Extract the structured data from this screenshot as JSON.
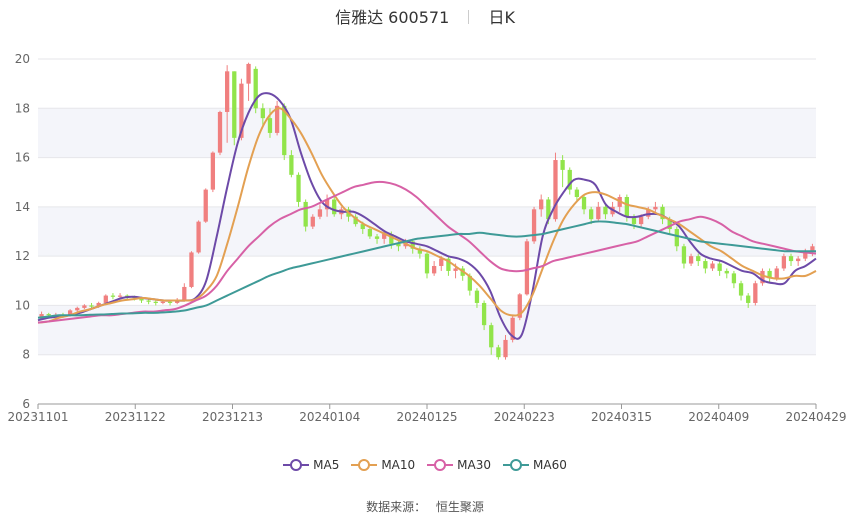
{
  "header": {
    "name": "信雅达",
    "code": "600571",
    "period": "日K"
  },
  "source": {
    "label": "数据来源：",
    "provider": "恒生聚源"
  },
  "colors": {
    "up": "#f07f7f",
    "down": "#91e44a",
    "MA5": "#6d4aa8",
    "MA10": "#e3a052",
    "MA30": "#d761a6",
    "MA60": "#3e9a97"
  },
  "chart_data": {
    "type": "candlestick",
    "yticks": [
      "6",
      "8",
      "10",
      "12",
      "14",
      "16",
      "18",
      "20"
    ],
    "ylim": [
      6,
      20
    ],
    "xticks": [
      "20231101",
      "20231122",
      "20231213",
      "20240104",
      "20240125",
      "20240223",
      "20240315",
      "20240409",
      "20240429"
    ],
    "legend": [
      "MA5",
      "MA10",
      "MA30",
      "MA60"
    ],
    "candles": [
      [
        9.55,
        9.65,
        9.75,
        9.45
      ],
      [
        9.65,
        9.6,
        9.7,
        9.5
      ],
      [
        9.6,
        9.62,
        9.7,
        9.55
      ],
      [
        9.62,
        9.6,
        9.7,
        9.5
      ],
      [
        9.6,
        9.8,
        9.85,
        9.55
      ],
      [
        9.8,
        9.9,
        9.95,
        9.7
      ],
      [
        9.9,
        10.0,
        10.05,
        9.85
      ],
      [
        10.0,
        9.95,
        10.1,
        9.9
      ],
      [
        9.95,
        10.1,
        10.15,
        9.9
      ],
      [
        10.1,
        10.4,
        10.45,
        10.05
      ],
      [
        10.4,
        10.35,
        10.5,
        10.25
      ],
      [
        10.35,
        10.4,
        10.5,
        10.3
      ],
      [
        10.4,
        10.35,
        10.45,
        10.2
      ],
      [
        10.35,
        10.3,
        10.4,
        10.2
      ],
      [
        10.3,
        10.2,
        10.35,
        10.1
      ],
      [
        10.2,
        10.15,
        10.3,
        10.05
      ],
      [
        10.15,
        10.1,
        10.25,
        10.0
      ],
      [
        10.1,
        10.15,
        10.2,
        10.05
      ],
      [
        10.15,
        10.1,
        10.2,
        10.0
      ],
      [
        10.1,
        10.2,
        10.3,
        10.05
      ],
      [
        10.2,
        10.75,
        10.9,
        10.15
      ],
      [
        10.75,
        12.15,
        12.2,
        10.7
      ],
      [
        12.15,
        13.4,
        13.45,
        12.1
      ],
      [
        13.4,
        14.7,
        14.75,
        13.35
      ],
      [
        14.7,
        16.2,
        16.25,
        14.6
      ],
      [
        16.2,
        17.85,
        17.9,
        16.1
      ],
      [
        17.85,
        19.5,
        19.75,
        16.6
      ],
      [
        19.5,
        16.8,
        19.5,
        16.5
      ],
      [
        16.8,
        19.0,
        19.2,
        16.7
      ],
      [
        19.0,
        19.8,
        19.85,
        18.3
      ],
      [
        19.6,
        18.0,
        19.7,
        17.8
      ],
      [
        18.0,
        17.6,
        18.2,
        17.3
      ],
      [
        17.6,
        17.0,
        18.0,
        16.8
      ],
      [
        17.0,
        18.1,
        18.3,
        16.9
      ],
      [
        18.1,
        16.1,
        18.2,
        15.9
      ],
      [
        16.1,
        15.3,
        16.3,
        15.2
      ],
      [
        15.3,
        14.2,
        15.4,
        14.0
      ],
      [
        14.2,
        13.2,
        14.3,
        13.0
      ],
      [
        13.2,
        13.6,
        13.7,
        13.1
      ],
      [
        13.6,
        13.9,
        14.1,
        13.5
      ],
      [
        13.9,
        14.3,
        14.5,
        13.6
      ],
      [
        14.3,
        13.7,
        14.4,
        13.6
      ],
      [
        13.7,
        13.9,
        14.0,
        13.5
      ],
      [
        13.9,
        13.6,
        14.0,
        13.4
      ],
      [
        13.6,
        13.3,
        13.7,
        13.2
      ],
      [
        13.3,
        13.1,
        13.4,
        12.9
      ],
      [
        13.1,
        12.8,
        13.2,
        12.7
      ],
      [
        12.8,
        12.7,
        12.9,
        12.5
      ],
      [
        12.7,
        12.9,
        13.0,
        12.5
      ],
      [
        12.9,
        12.5,
        13.0,
        12.3
      ],
      [
        12.5,
        12.4,
        12.6,
        12.2
      ],
      [
        12.4,
        12.6,
        12.7,
        12.3
      ],
      [
        12.6,
        12.3,
        12.7,
        12.1
      ],
      [
        12.3,
        12.1,
        12.4,
        11.9
      ],
      [
        12.1,
        11.3,
        12.2,
        11.1
      ],
      [
        11.3,
        11.6,
        11.8,
        11.2
      ],
      [
        11.6,
        11.9,
        12.0,
        11.4
      ],
      [
        11.9,
        11.4,
        12.0,
        11.2
      ],
      [
        11.4,
        11.5,
        11.7,
        11.1
      ],
      [
        11.5,
        11.2,
        11.6,
        11.0
      ],
      [
        11.2,
        10.6,
        11.3,
        10.4
      ],
      [
        10.6,
        10.1,
        10.7,
        9.9
      ],
      [
        10.1,
        9.2,
        10.2,
        9.0
      ],
      [
        9.2,
        8.3,
        9.3,
        8.0
      ],
      [
        8.3,
        7.9,
        8.4,
        7.8
      ],
      [
        7.9,
        8.6,
        8.8,
        7.8
      ],
      [
        8.6,
        9.5,
        9.6,
        8.5
      ],
      [
        9.5,
        10.45,
        10.5,
        9.4
      ],
      [
        10.45,
        12.6,
        12.7,
        10.4
      ],
      [
        12.6,
        13.9,
        14.0,
        12.5
      ],
      [
        13.9,
        14.3,
        14.5,
        13.6
      ],
      [
        14.3,
        13.5,
        14.4,
        13.3
      ],
      [
        13.5,
        15.9,
        16.2,
        13.4
      ],
      [
        15.9,
        15.5,
        16.1,
        14.8
      ],
      [
        15.5,
        14.7,
        15.6,
        14.5
      ],
      [
        14.7,
        14.4,
        14.8,
        14.2
      ],
      [
        14.4,
        13.9,
        14.5,
        13.7
      ],
      [
        13.9,
        13.5,
        14.0,
        13.3
      ],
      [
        13.5,
        14.0,
        14.2,
        13.4
      ],
      [
        14.0,
        13.7,
        14.1,
        13.5
      ],
      [
        13.7,
        14.0,
        14.2,
        13.6
      ],
      [
        14.0,
        14.4,
        14.5,
        13.8
      ],
      [
        14.4,
        13.6,
        14.5,
        13.4
      ],
      [
        13.6,
        13.3,
        13.7,
        13.1
      ],
      [
        13.3,
        13.6,
        13.7,
        13.2
      ],
      [
        13.6,
        13.9,
        14.0,
        13.5
      ],
      [
        13.9,
        14.0,
        14.2,
        13.8
      ],
      [
        14.0,
        13.5,
        14.1,
        13.3
      ],
      [
        13.5,
        13.1,
        13.6,
        12.9
      ],
      [
        13.1,
        12.4,
        13.2,
        12.2
      ],
      [
        12.4,
        11.7,
        12.5,
        11.5
      ],
      [
        11.7,
        12.0,
        12.1,
        11.6
      ],
      [
        12.0,
        11.8,
        12.1,
        11.6
      ],
      [
        11.8,
        11.5,
        11.9,
        11.3
      ],
      [
        11.5,
        11.7,
        11.8,
        11.4
      ],
      [
        11.7,
        11.4,
        11.8,
        11.2
      ],
      [
        11.4,
        11.3,
        11.5,
        11.1
      ],
      [
        11.3,
        10.9,
        11.4,
        10.7
      ],
      [
        10.9,
        10.4,
        11.0,
        10.2
      ],
      [
        10.4,
        10.1,
        10.5,
        9.9
      ],
      [
        10.1,
        10.9,
        11.0,
        10.0
      ],
      [
        10.9,
        11.4,
        11.5,
        10.8
      ],
      [
        11.4,
        11.1,
        11.5,
        10.9
      ],
      [
        11.1,
        11.5,
        11.6,
        11.0
      ],
      [
        11.5,
        12.0,
        12.1,
        11.4
      ],
      [
        12.0,
        11.8,
        12.1,
        11.6
      ],
      [
        11.8,
        11.9,
        12.0,
        11.6
      ],
      [
        11.9,
        12.2,
        12.3,
        11.8
      ],
      [
        12.2,
        12.4,
        12.5,
        12.0
      ]
    ],
    "series": [
      {
        "name": "MA5",
        "values": [
          9.4,
          9.5,
          9.55,
          9.6,
          9.7,
          9.85,
          10.0,
          10.15,
          10.3,
          10.35,
          10.3,
          10.25,
          10.2,
          10.2,
          10.2,
          10.3,
          11.0,
          12.8,
          14.8,
          16.6,
          17.8,
          18.5,
          18.6,
          18.3,
          17.6,
          16.2,
          15.0,
          14.2,
          13.9,
          13.8,
          13.8,
          13.6,
          13.3,
          13.0,
          12.8,
          12.6,
          12.5,
          12.4,
          12.2,
          12.0,
          11.9,
          11.7,
          11.3,
          10.6,
          9.5,
          8.8,
          8.8,
          10.5,
          12.8,
          13.9,
          14.6,
          15.1,
          15.1,
          14.9,
          14.1,
          13.8,
          13.6,
          13.6,
          13.7,
          13.7,
          13.5,
          13.2,
          12.6,
          12.1,
          11.9,
          11.8,
          11.6,
          11.4,
          11.3,
          11.0,
          10.9,
          10.9,
          11.4,
          11.6,
          11.9
        ]
      },
      {
        "name": "MA10",
        "values": [
          9.3,
          9.35,
          9.5,
          9.6,
          9.75,
          9.85,
          10.0,
          10.1,
          10.2,
          10.25,
          10.3,
          10.25,
          10.2,
          10.2,
          10.2,
          10.25,
          10.6,
          11.2,
          12.5,
          14.0,
          15.6,
          16.9,
          17.7,
          18.0,
          17.6,
          17.0,
          16.2,
          15.3,
          14.6,
          14.0,
          13.6,
          13.3,
          13.1,
          12.9,
          12.7,
          12.5,
          12.3,
          12.2,
          12.0,
          11.8,
          11.5,
          11.2,
          10.8,
          10.3,
          9.8,
          9.6,
          9.7,
          10.4,
          11.5,
          12.6,
          13.5,
          14.1,
          14.5,
          14.6,
          14.5,
          14.3,
          14.1,
          14.0,
          13.9,
          13.7,
          13.5,
          13.3,
          13.0,
          12.7,
          12.4,
          12.2,
          11.9,
          11.6,
          11.4,
          11.2,
          11.1,
          11.1,
          11.2,
          11.2,
          11.4
        ]
      },
      {
        "name": "MA30",
        "values": [
          9.3,
          9.35,
          9.4,
          9.45,
          9.5,
          9.55,
          9.6,
          9.6,
          9.65,
          9.7,
          9.75,
          9.75,
          9.8,
          9.85,
          10.0,
          10.2,
          10.4,
          10.8,
          11.4,
          11.9,
          12.4,
          12.8,
          13.2,
          13.5,
          13.7,
          13.9,
          14.0,
          14.2,
          14.4,
          14.6,
          14.8,
          14.9,
          15.0,
          15.0,
          14.9,
          14.7,
          14.4,
          14.0,
          13.6,
          13.2,
          12.9,
          12.6,
          12.2,
          11.8,
          11.5,
          11.4,
          11.4,
          11.5,
          11.6,
          11.8,
          11.9,
          12.0,
          12.1,
          12.2,
          12.3,
          12.4,
          12.5,
          12.6,
          12.8,
          13.0,
          13.2,
          13.4,
          13.5,
          13.6,
          13.5,
          13.3,
          13.0,
          12.8,
          12.6,
          12.5,
          12.4,
          12.3,
          12.2,
          12.15,
          12.1
        ]
      },
      {
        "name": "MA60",
        "values": [
          9.5,
          9.55,
          9.6,
          9.6,
          9.6,
          9.62,
          9.63,
          9.65,
          9.67,
          9.68,
          9.7,
          9.7,
          9.72,
          9.75,
          9.8,
          9.9,
          10.0,
          10.2,
          10.4,
          10.6,
          10.8,
          11.0,
          11.2,
          11.35,
          11.5,
          11.6,
          11.7,
          11.8,
          11.9,
          12.0,
          12.1,
          12.2,
          12.3,
          12.4,
          12.5,
          12.6,
          12.7,
          12.75,
          12.8,
          12.85,
          12.9,
          12.9,
          12.95,
          12.9,
          12.85,
          12.8,
          12.8,
          12.85,
          12.9,
          13.0,
          13.1,
          13.2,
          13.3,
          13.4,
          13.4,
          13.35,
          13.3,
          13.2,
          13.1,
          13.0,
          12.9,
          12.8,
          12.7,
          12.6,
          12.55,
          12.5,
          12.45,
          12.4,
          12.35,
          12.3,
          12.25,
          12.2,
          12.2,
          12.2,
          12.2
        ]
      }
    ]
  }
}
